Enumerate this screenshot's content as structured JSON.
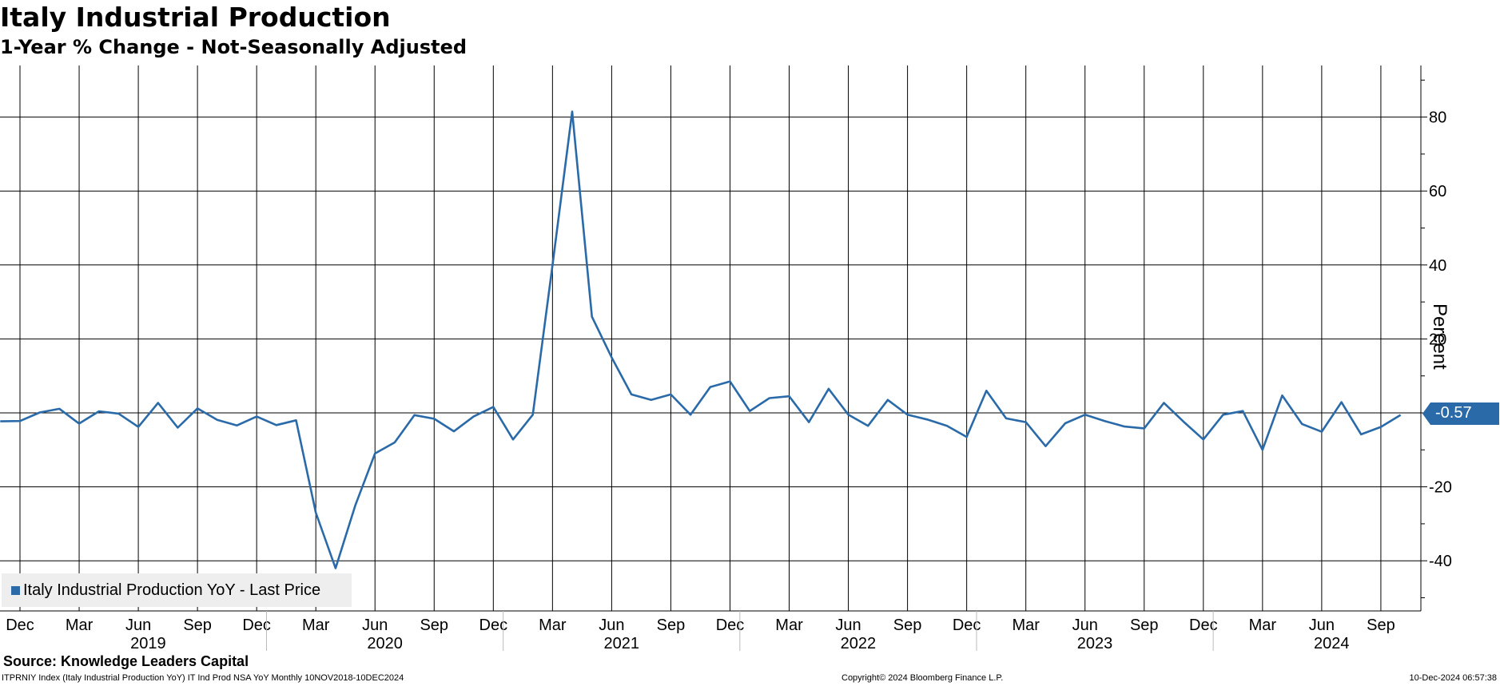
{
  "title": "Italy Industrial Production",
  "subtitle": "1-Year % Change - Not-Seasonally Adjusted",
  "source": "Source: Knowledge Leaders Capital",
  "footer_left": "ITPRNIY Index (Italy Industrial Production YoY) IT Ind Prod NSA YoY  Monthly 10NOV2018-10DEC2024",
  "footer_mid": "Copyright© 2024 Bloomberg Finance L.P.",
  "footer_right": "10-Dec-2024 06:57:38",
  "legend_label": "Italy Industrial Production YoY - Last Price",
  "ylabel": "Percent",
  "last_value_label": "-0.57",
  "colors": {
    "series": "#2a6aa8",
    "grid": "#000000",
    "badge": "#2a6aa8"
  },
  "chart_data": {
    "type": "line",
    "title": "Italy Industrial Production",
    "subtitle": "1-Year % Change - Not-Seasonally Adjusted",
    "ylabel": "Percent",
    "ylim": [
      -54,
      93
    ],
    "yticks": [
      -40,
      -20,
      20,
      40,
      60,
      80
    ],
    "grid": true,
    "legend_position": "bottom-left",
    "month_ticks": [
      "Dec",
      "Mar",
      "Jun",
      "Sep",
      "Dec",
      "Mar",
      "Jun",
      "Sep",
      "Dec",
      "Mar",
      "Jun",
      "Sep",
      "Dec",
      "Mar",
      "Jun",
      "Sep",
      "Dec",
      "Mar",
      "Jun",
      "Sep",
      "Dec",
      "Mar",
      "Jun",
      "Sep"
    ],
    "year_labels": [
      "2019",
      "2020",
      "2021",
      "2022",
      "2023",
      "2024"
    ],
    "series": [
      {
        "name": "Italy Industrial Production YoY - Last Price",
        "start": "2018-11",
        "end": "2024-10",
        "values": [
          -2.3,
          -2.2,
          0.1,
          1.1,
          -2.9,
          0.4,
          -0.2,
          -3.8,
          2.7,
          -4.0,
          1.2,
          -1.9,
          -3.4,
          -1.0,
          -3.3,
          -2.0,
          -27.0,
          -42.0,
          -25.0,
          -11.0,
          -8.0,
          -0.6,
          -1.6,
          -5.0,
          -1.0,
          1.6,
          -7.2,
          -0.5,
          40.0,
          81.5,
          26.0,
          15.0,
          5.0,
          3.5,
          5.0,
          -0.5,
          7.0,
          8.5,
          0.5,
          4.0,
          4.5,
          -2.5,
          6.5,
          -0.5,
          -3.5,
          3.5,
          -0.5,
          -1.8,
          -3.5,
          -6.5,
          6.0,
          -1.5,
          -2.5,
          -9.0,
          -2.8,
          -0.5,
          -2.2,
          -3.7,
          -4.2,
          2.7,
          -2.4,
          -7.2,
          -0.5,
          0.5,
          -10.0,
          4.7,
          -3.0,
          -5.1,
          2.9,
          -5.8,
          -3.8,
          -0.57
        ]
      }
    ]
  }
}
